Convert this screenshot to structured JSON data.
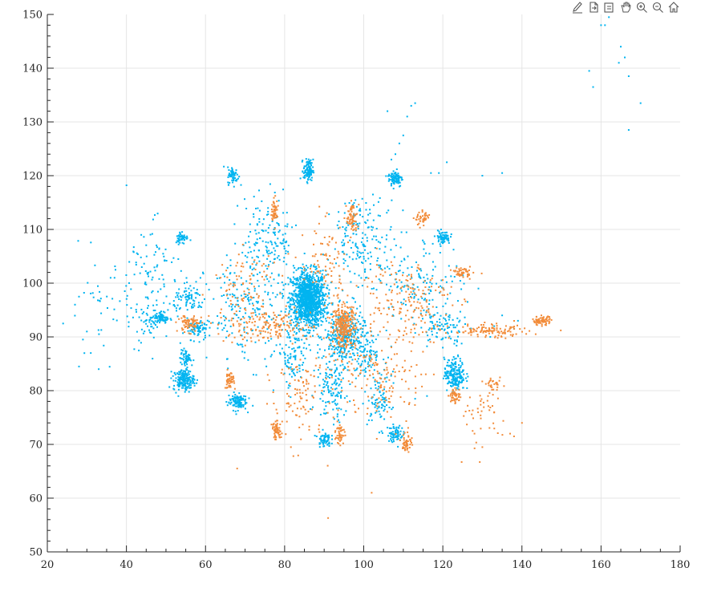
{
  "toolbar": {
    "icons": [
      "brush-icon",
      "export-icon",
      "datatip-icon",
      "pan-hand-icon",
      "zoom-in-icon",
      "zoom-out-icon",
      "home-icon"
    ]
  },
  "colors": {
    "series_blue": "#00B4F0",
    "series_orange": "#F28C3A",
    "axis": "#262626",
    "grid": "#e5e5e5"
  },
  "chart_data": {
    "type": "scatter",
    "xlim": [
      20,
      180
    ],
    "ylim": [
      50,
      150
    ],
    "xticks": [
      "20",
      "40",
      "60",
      "80",
      "100",
      "120",
      "140",
      "160",
      "180"
    ],
    "yticks": [
      "50",
      "60",
      "70",
      "80",
      "90",
      "100",
      "110",
      "120",
      "130",
      "140",
      "150"
    ],
    "grid": true,
    "title": "",
    "xlabel": "",
    "ylabel": "",
    "series": [
      {
        "color": "#00B4F0",
        "clusters": [
          {
            "x": 86,
            "y": 97,
            "sx": 2.2,
            "sy": 2.6,
            "n": 1200
          },
          {
            "x": 95,
            "y": 90,
            "sx": 2.5,
            "sy": 2.5,
            "n": 350
          },
          {
            "x": 86,
            "y": 121,
            "sx": 0.6,
            "sy": 1.0,
            "n": 110
          },
          {
            "x": 108,
            "y": 119.5,
            "sx": 0.9,
            "sy": 0.8,
            "n": 90
          },
          {
            "x": 67,
            "y": 120,
            "sx": 0.7,
            "sy": 0.8,
            "n": 60
          },
          {
            "x": 54,
            "y": 108.5,
            "sx": 0.8,
            "sy": 0.6,
            "n": 50
          },
          {
            "x": 120,
            "y": 108.5,
            "sx": 0.9,
            "sy": 0.6,
            "n": 70
          },
          {
            "x": 54.5,
            "y": 82,
            "sx": 1.3,
            "sy": 1.0,
            "n": 180
          },
          {
            "x": 55,
            "y": 86,
            "sx": 0.7,
            "sy": 0.8,
            "n": 60
          },
          {
            "x": 68,
            "y": 78,
            "sx": 1.2,
            "sy": 0.8,
            "n": 110
          },
          {
            "x": 123,
            "y": 83,
            "sx": 1.3,
            "sy": 1.5,
            "n": 200
          },
          {
            "x": 108,
            "y": 72,
            "sx": 1.0,
            "sy": 0.8,
            "n": 70
          },
          {
            "x": 90,
            "y": 71,
            "sx": 0.8,
            "sy": 0.7,
            "n": 60
          },
          {
            "x": 49,
            "y": 93.5,
            "sx": 0.9,
            "sy": 0.6,
            "n": 60
          },
          {
            "x": 46,
            "y": 93,
            "sx": 1.5,
            "sy": 1.0,
            "n": 40
          },
          {
            "x": 58,
            "y": 91.5,
            "sx": 1.3,
            "sy": 0.9,
            "n": 80
          },
          {
            "x": 56,
            "y": 97,
            "sx": 2.0,
            "sy": 1.2,
            "n": 80
          },
          {
            "x": 92,
            "y": 80,
            "sx": 2.0,
            "sy": 3.0,
            "n": 120
          },
          {
            "x": 101,
            "y": 87,
            "sx": 2.0,
            "sy": 2.0,
            "n": 80
          },
          {
            "x": 104,
            "y": 78,
            "sx": 1.5,
            "sy": 2.5,
            "n": 80
          },
          {
            "x": 82,
            "y": 86,
            "sx": 2.0,
            "sy": 3.0,
            "n": 100
          },
          {
            "x": 76,
            "y": 108,
            "sx": 3.5,
            "sy": 4.0,
            "n": 150
          },
          {
            "x": 70,
            "y": 95,
            "sx": 5.0,
            "sy": 5.0,
            "n": 200
          },
          {
            "x": 100,
            "y": 108,
            "sx": 4.0,
            "sy": 4.0,
            "n": 180
          },
          {
            "x": 115,
            "y": 100,
            "sx": 5.0,
            "sy": 4.0,
            "n": 140
          },
          {
            "x": 120,
            "y": 92,
            "sx": 3.0,
            "sy": 1.5,
            "n": 80
          },
          {
            "x": 45,
            "y": 100,
            "sx": 4.0,
            "sy": 6.0,
            "n": 110
          },
          {
            "x": 33,
            "y": 95,
            "sx": 3.5,
            "sy": 4.5,
            "n": 30
          }
        ],
        "points": [
          [
            161,
            148
          ],
          [
            160,
            148
          ],
          [
            162,
            149.5
          ],
          [
            165,
            144
          ],
          [
            166,
            142
          ],
          [
            164.5,
            141
          ],
          [
            157,
            139.5
          ],
          [
            158,
            136.5
          ],
          [
            167,
            138.5
          ],
          [
            170,
            133.5
          ],
          [
            167,
            128.5
          ],
          [
            112,
            133
          ],
          [
            113,
            133.5
          ],
          [
            111,
            131
          ],
          [
            106,
            132
          ],
          [
            110,
            127.5
          ],
          [
            108,
            124
          ],
          [
            107,
            123
          ],
          [
            109,
            126
          ],
          [
            121,
            122.5
          ],
          [
            130,
            120
          ],
          [
            135,
            120.5
          ],
          [
            117,
            120.5
          ],
          [
            119,
            120.5
          ],
          [
            24,
            92.5
          ],
          [
            28,
            84.5
          ],
          [
            29,
            89.5
          ],
          [
            30,
            91
          ],
          [
            31,
            87
          ],
          [
            33,
            84
          ],
          [
            27,
            96
          ],
          [
            28,
            97.5
          ],
          [
            37,
            101
          ],
          [
            36,
            101
          ],
          [
            129,
            99
          ],
          [
            135,
            94
          ],
          [
            138,
            91.5
          ],
          [
            139,
            93
          ],
          [
            132,
            90
          ],
          [
            133,
            92
          ],
          [
            120,
            88
          ],
          [
            116,
            79
          ],
          [
            113,
            78.5
          ]
        ]
      },
      {
        "color": "#F28C3A",
        "clusters": [
          {
            "x": 95,
            "y": 92,
            "sx": 1.5,
            "sy": 2.0,
            "n": 280
          },
          {
            "x": 77.5,
            "y": 113.5,
            "sx": 0.4,
            "sy": 1.0,
            "n": 60
          },
          {
            "x": 97,
            "y": 112,
            "sx": 0.7,
            "sy": 1.5,
            "n": 70
          },
          {
            "x": 115,
            "y": 112,
            "sx": 1.0,
            "sy": 0.6,
            "n": 40
          },
          {
            "x": 125,
            "y": 102,
            "sx": 1.0,
            "sy": 0.5,
            "n": 50
          },
          {
            "x": 145,
            "y": 93,
            "sx": 1.2,
            "sy": 0.4,
            "n": 70
          },
          {
            "x": 132,
            "y": 91,
            "sx": 5.0,
            "sy": 0.6,
            "n": 120
          },
          {
            "x": 56,
            "y": 92.5,
            "sx": 1.5,
            "sy": 0.8,
            "n": 80
          },
          {
            "x": 66,
            "y": 82,
            "sx": 0.6,
            "sy": 0.8,
            "n": 50
          },
          {
            "x": 78,
            "y": 72.5,
            "sx": 0.6,
            "sy": 0.8,
            "n": 60
          },
          {
            "x": 94,
            "y": 72,
            "sx": 0.6,
            "sy": 1.0,
            "n": 40
          },
          {
            "x": 111,
            "y": 70.5,
            "sx": 0.6,
            "sy": 1.0,
            "n": 50
          },
          {
            "x": 123,
            "y": 79,
            "sx": 0.8,
            "sy": 0.7,
            "n": 50
          },
          {
            "x": 133,
            "y": 81,
            "sx": 1.0,
            "sy": 0.6,
            "n": 30
          },
          {
            "x": 75,
            "y": 92,
            "sx": 6.0,
            "sy": 1.5,
            "n": 160
          },
          {
            "x": 110,
            "y": 97,
            "sx": 6.0,
            "sy": 4.0,
            "n": 180
          },
          {
            "x": 105,
            "y": 82,
            "sx": 5.0,
            "sy": 4.0,
            "n": 140
          },
          {
            "x": 85,
            "y": 80,
            "sx": 4.0,
            "sy": 5.0,
            "n": 120
          },
          {
            "x": 90,
            "y": 104,
            "sx": 3.0,
            "sy": 4.0,
            "n": 80
          },
          {
            "x": 70,
            "y": 100,
            "sx": 4.0,
            "sy": 3.0,
            "n": 80
          },
          {
            "x": 130,
            "y": 75,
            "sx": 4.0,
            "sy": 3.0,
            "n": 40
          }
        ],
        "points": [
          [
            68,
            65.5
          ],
          [
            91,
            56.3
          ],
          [
            102,
            61
          ],
          [
            130,
            69.5
          ],
          [
            137,
            72
          ],
          [
            140,
            74
          ],
          [
            138,
            71.5
          ],
          [
            128,
            72
          ],
          [
            133,
            76
          ]
        ]
      }
    ]
  }
}
